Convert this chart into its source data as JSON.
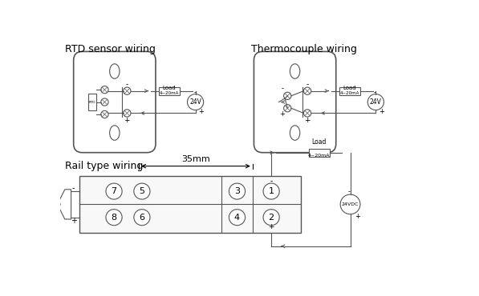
{
  "title1": "RTD sensor wiring",
  "title2": "Thermocouple wiring",
  "title3": "Rail type wiring",
  "bg_color": "#ffffff",
  "line_color": "#555555",
  "text_color": "#000000",
  "load_label": "Load",
  "current_label": "4~20mA",
  "voltage_label1": "24V",
  "voltage_label2": "24V",
  "voltage_label3": "24VDC",
  "dim_label": "35mm",
  "minus_sign": "-",
  "plus_sign": "+",
  "terminal_numbers": [
    "1",
    "2",
    "3",
    "4",
    "5",
    "6",
    "7",
    "8"
  ]
}
